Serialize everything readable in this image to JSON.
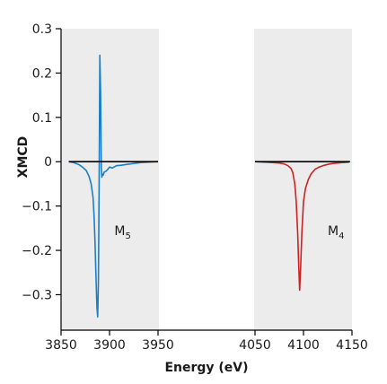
{
  "chart_data": {
    "type": "line",
    "title": "",
    "xlabel": "Energy (eV)",
    "ylabel": "XMCD",
    "axis_break": {
      "from": 3950,
      "to": 4050
    },
    "xlim": [
      3850,
      4150
    ],
    "ylim": [
      -0.38,
      0.3
    ],
    "x_ticks": [
      {
        "value": 3850,
        "label": "3850"
      },
      {
        "value": 3900,
        "label": "3900"
      },
      {
        "value": 3950,
        "label": "3950"
      },
      {
        "value": 4050,
        "label": "4050"
      },
      {
        "value": 4100,
        "label": "4100"
      },
      {
        "value": 4150,
        "label": "4150"
      }
    ],
    "y_ticks": [
      {
        "value": 0.3,
        "label": "0.3"
      },
      {
        "value": 0.2,
        "label": "0.2"
      },
      {
        "value": 0.1,
        "label": "0.1"
      },
      {
        "value": 0,
        "label": "0"
      },
      {
        "value": -0.1,
        "label": "−0.1"
      },
      {
        "value": -0.2,
        "label": "−0.2"
      },
      {
        "value": -0.3,
        "label": "−0.3"
      }
    ],
    "grid": false,
    "legend": "none",
    "series": [
      {
        "color": "#1a7fc4",
        "x": [
          3858,
          3863,
          3868,
          3872,
          3876,
          3879,
          3881,
          3883,
          3884,
          3885,
          3886,
          3887,
          3887.8,
          3888.5,
          3889.3,
          3890,
          3890.8,
          3891.5,
          3892,
          3892.8,
          3893.5,
          3894.5,
          3896,
          3898,
          3900,
          3903,
          3907,
          3912,
          3918,
          3925,
          3932,
          3940,
          3950
        ],
        "y": [
          0.0,
          -0.002,
          -0.006,
          -0.012,
          -0.02,
          -0.034,
          -0.05,
          -0.08,
          -0.12,
          -0.18,
          -0.26,
          -0.33,
          -0.35,
          -0.27,
          -0.05,
          0.24,
          0.15,
          -0.01,
          -0.035,
          -0.028,
          -0.03,
          -0.023,
          -0.022,
          -0.018,
          -0.012,
          -0.014,
          -0.009,
          -0.008,
          -0.006,
          -0.004,
          -0.002,
          -0.001,
          0.0
        ]
      },
      {
        "color": "#cc2222",
        "x": [
          4050,
          4060,
          4068,
          4075,
          4080,
          4084,
          4087,
          4089,
          4091,
          4092.5,
          4094,
          4095.2,
          4096,
          4097,
          4098.3,
          4100,
          4102,
          4105,
          4108,
          4112,
          4116,
          4120,
          4125,
          4130,
          4135,
          4140,
          4147
        ],
        "y": [
          0.0,
          -0.001,
          -0.002,
          -0.003,
          -0.005,
          -0.009,
          -0.015,
          -0.025,
          -0.05,
          -0.09,
          -0.16,
          -0.24,
          -0.29,
          -0.24,
          -0.16,
          -0.09,
          -0.06,
          -0.04,
          -0.027,
          -0.017,
          -0.012,
          -0.009,
          -0.006,
          -0.004,
          -0.003,
          -0.002,
          -0.001
        ]
      }
    ],
    "zero_line_segments": [
      [
        3858,
        3950
      ],
      [
        4050,
        4148
      ]
    ],
    "annotations": [
      {
        "main": "M",
        "sub": "5",
        "x": 3905,
        "y": -0.165
      },
      {
        "main": "M",
        "sub": "4",
        "x": 4125,
        "y": -0.165
      }
    ]
  }
}
